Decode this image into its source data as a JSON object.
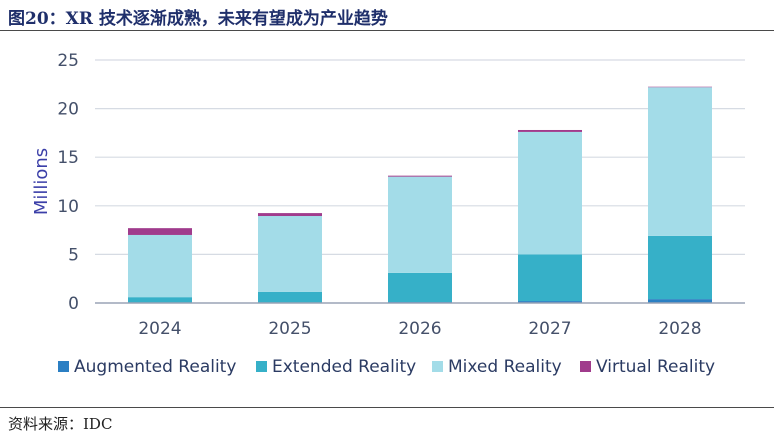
{
  "header": {
    "title": "图20：XR 技术逐渐成熟，未来有望成为产业趋势"
  },
  "footer": {
    "source": "资料来源：IDC"
  },
  "colors": {
    "augmented": "#2b7fc3",
    "extended": "#36b0c8",
    "mixed": "#a3dce8",
    "virtual": "#a03b8c",
    "grid": "#d6dbe3",
    "axis": "#9aa3b5"
  },
  "chart_data": {
    "type": "bar",
    "stacked": true,
    "categories": [
      "2024",
      "2025",
      "2026",
      "2027",
      "2028"
    ],
    "ylabel": "Millions",
    "ylim": [
      0,
      25
    ],
    "yticks": [
      0,
      5,
      10,
      15,
      20,
      25
    ],
    "grid": true,
    "legend_position": "bottom",
    "series": [
      {
        "name": "Augmented Reality",
        "color": "#2b7fc3",
        "values": [
          0.05,
          0.05,
          0.1,
          0.2,
          0.4
        ]
      },
      {
        "name": "Extended Reality",
        "color": "#36b0c8",
        "values": [
          0.55,
          1.1,
          3.0,
          4.8,
          6.5
        ]
      },
      {
        "name": "Mixed Reality",
        "color": "#a3dce8",
        "values": [
          6.4,
          7.8,
          9.9,
          12.6,
          15.3
        ]
      },
      {
        "name": "Virtual Reality",
        "color": "#a03b8c",
        "values": [
          0.7,
          0.3,
          0.1,
          0.2,
          0.05
        ]
      }
    ]
  }
}
